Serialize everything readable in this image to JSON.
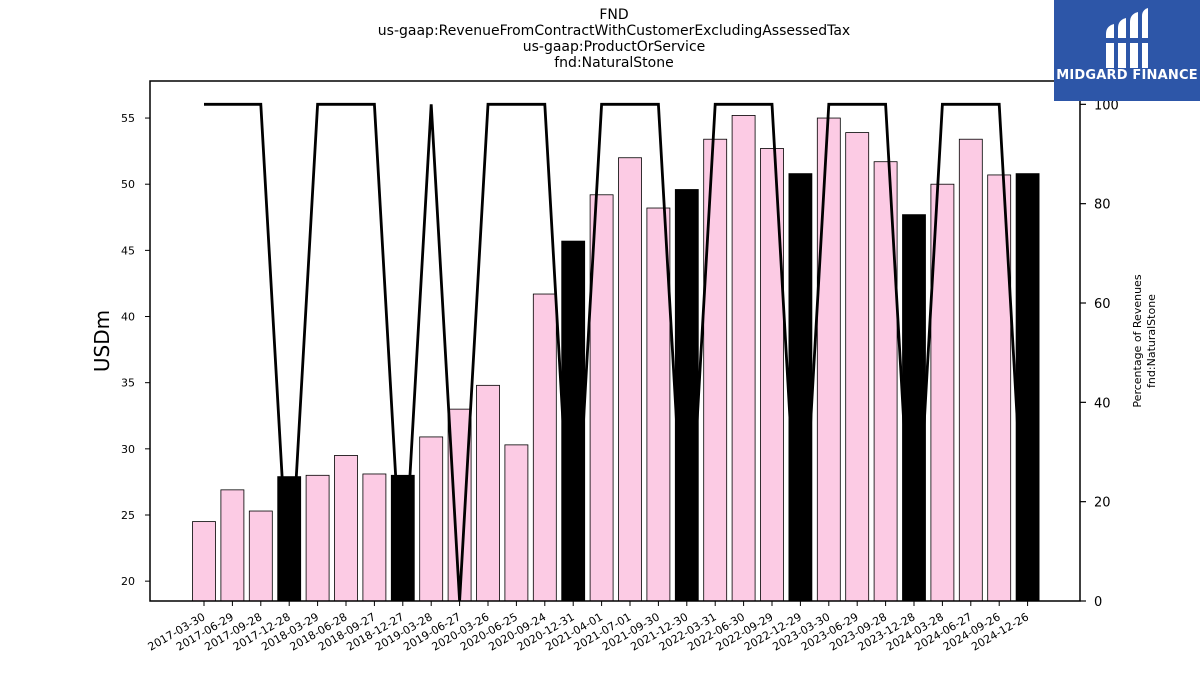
{
  "title_lines": [
    "FND",
    "us-gaap:RevenueFromContractWithCustomerExcludingAssessedTax",
    "us-gaap:ProductOrService",
    "fnd:NaturalStone"
  ],
  "logo": {
    "text": "MIDGARD FINANCE",
    "bg_color": "#2d56a8"
  },
  "chart_data": {
    "type": "bar",
    "categories": [
      "2017-03-30",
      "2017-06-29",
      "2017-09-28",
      "2017-12-28",
      "2018-03-29",
      "2018-06-28",
      "2018-09-27",
      "2018-12-27",
      "2019-03-28",
      "2019-06-27",
      "2020-03-26",
      "2020-06-25",
      "2020-09-24",
      "2020-12-31",
      "2021-04-01",
      "2021-07-01",
      "2021-09-30",
      "2021-12-30",
      "2022-03-31",
      "2022-06-30",
      "2022-09-29",
      "2022-12-29",
      "2023-03-30",
      "2023-06-29",
      "2023-09-28",
      "2023-12-28",
      "2024-03-28",
      "2024-06-27",
      "2024-09-26",
      "2024-12-26"
    ],
    "series": [
      {
        "type": "bar",
        "axis": "left",
        "values": [
          24.5,
          26.9,
          25.3,
          27.9,
          28.0,
          29.5,
          28.1,
          28.0,
          30.9,
          33.0,
          34.8,
          30.3,
          41.7,
          45.7,
          49.2,
          52.0,
          48.2,
          49.6,
          53.4,
          55.2,
          52.7,
          50.8,
          55.0,
          53.9,
          51.7,
          47.7,
          50.0,
          53.4,
          50.7,
          50.8
        ],
        "highlight": [
          false,
          false,
          false,
          true,
          false,
          false,
          false,
          true,
          false,
          false,
          false,
          false,
          false,
          true,
          false,
          false,
          false,
          true,
          false,
          false,
          false,
          true,
          false,
          false,
          false,
          true,
          false,
          false,
          false,
          true
        ]
      },
      {
        "type": "line",
        "axis": "right",
        "values": [
          100,
          100,
          100,
          0,
          100,
          100,
          100,
          0,
          100,
          0,
          100,
          100,
          100,
          0,
          100,
          100,
          100,
          0,
          100,
          100,
          100,
          0,
          100,
          100,
          100,
          0,
          100,
          100,
          100,
          0
        ]
      }
    ],
    "ylabel": "USDm",
    "y2label_lines": [
      "Percentage of Revenues",
      "fnd:NaturalStone"
    ],
    "ylim": [
      18.5,
      57.8
    ],
    "y2lim": [
      0,
      104.7
    ],
    "yticks": [
      20,
      25,
      30,
      35,
      40,
      45,
      50,
      55
    ],
    "y2ticks": [
      0,
      20,
      40,
      60,
      80,
      100
    ],
    "colors": {
      "bar": "#fccbe4",
      "bar_highlight": "#000000",
      "bar_edge": "#000000",
      "line": "#000000"
    },
    "grid": false,
    "legend": "none"
  }
}
